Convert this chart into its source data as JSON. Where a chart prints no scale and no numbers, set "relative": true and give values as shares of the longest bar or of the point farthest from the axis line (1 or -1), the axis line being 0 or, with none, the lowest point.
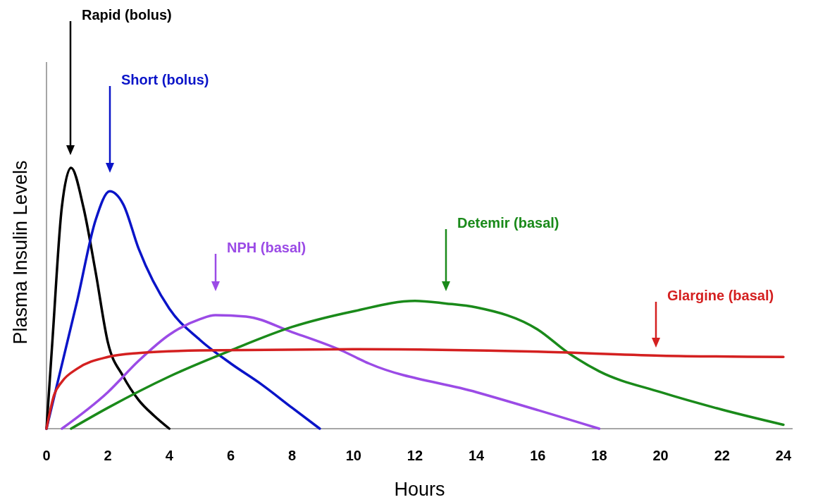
{
  "chart_data": {
    "type": "line",
    "relative": true,
    "xlabel": "Hours",
    "ylabel": "Plasma Insulin Levels",
    "xlim": [
      0,
      24.3
    ],
    "xticks": [
      0,
      2,
      4,
      6,
      8,
      10,
      12,
      14,
      16,
      18,
      20,
      22,
      24
    ],
    "tick_labels": "x",
    "grid": false,
    "marker": "none",
    "line_style": "solid",
    "series": [
      {
        "name": "Rapid (bolus)",
        "color": "#000000",
        "x": [
          0,
          0.2,
          0.5,
          0.8,
          1.2,
          1.6,
          2,
          2.5,
          3,
          3.5,
          4
        ],
        "values": [
          0,
          0.35,
          0.85,
          1,
          0.85,
          0.6,
          0.33,
          0.2,
          0.11,
          0.05,
          0
        ]
      },
      {
        "name": "Short (bolus)",
        "color": "#0a14c8",
        "x": [
          0,
          1,
          1.6,
          2.06,
          2.5,
          3,
          4,
          5,
          6,
          7,
          8,
          8.9
        ],
        "values": [
          0,
          0.49,
          0.8,
          0.91,
          0.86,
          0.69,
          0.46,
          0.34,
          0.25,
          0.17,
          0.08,
          0
        ]
      },
      {
        "name": "NPH (basal)",
        "color": "#9b4be6",
        "x": [
          0.5,
          2,
          3,
          4,
          5,
          5.5,
          6.5,
          8,
          9.6,
          10.5,
          14,
          18
        ],
        "values": [
          0,
          0.14,
          0.26,
          0.36,
          0.42,
          0.435,
          0.43,
          0.37,
          0.3,
          0.25,
          0.14,
          0
        ]
      },
      {
        "name": "Detemir (basal)",
        "color": "#1a8a1a",
        "x": [
          0.8,
          2,
          4,
          6,
          8,
          10,
          12,
          13,
          14,
          16,
          17,
          18,
          20,
          22,
          24
        ],
        "values": [
          0,
          0.08,
          0.2,
          0.3,
          0.39,
          0.45,
          0.49,
          0.48,
          0.465,
          0.38,
          0.29,
          0.22,
          0.14,
          0.073,
          0.015
        ]
      },
      {
        "name": "Glargine (basal)",
        "color": "#d42020",
        "x": [
          0,
          0.25,
          0.5,
          1,
          2,
          3,
          5,
          10,
          16,
          20,
          24
        ],
        "values": [
          0,
          0.13,
          0.18,
          0.23,
          0.275,
          0.29,
          0.3,
          0.305,
          0.295,
          0.28,
          0.275
        ]
      }
    ]
  }
}
